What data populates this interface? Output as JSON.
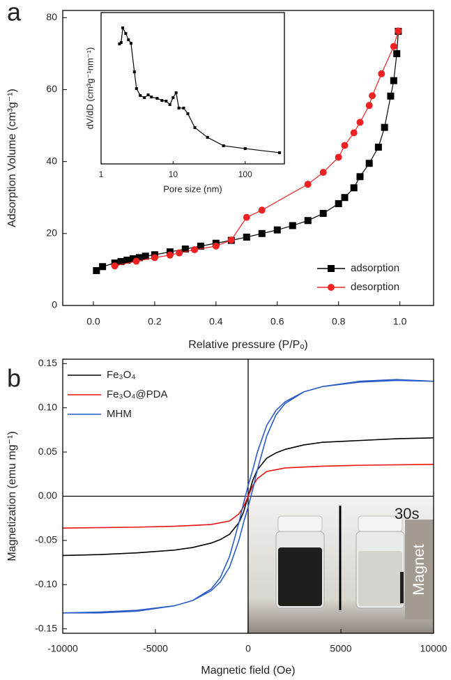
{
  "chart_data": [
    {
      "type": "line",
      "panel_label": "a",
      "xlabel": "Relative pressure (P/Pₒ)",
      "ylabel": "Adsorption Volume (cm³g⁻¹)",
      "xlim": [
        -0.1,
        1.11
      ],
      "ylim": [
        0,
        82
      ],
      "xticks": [
        {
          "value": 0,
          "label": "0.0"
        },
        0.2,
        0.4,
        0.6,
        0.8,
        {
          "value": 1,
          "label": "1.0"
        }
      ],
      "yticks": [
        0,
        20,
        40,
        60,
        80
      ],
      "grid": false,
      "legend": "lower right",
      "series": [
        {
          "name": "adsorption",
          "color": "#000000",
          "marker": "square",
          "x": [
            0.01,
            0.03,
            0.07,
            0.09,
            0.11,
            0.13,
            0.15,
            0.17,
            0.2,
            0.25,
            0.3,
            0.35,
            0.4,
            0.45,
            0.5,
            0.55,
            0.6,
            0.65,
            0.7,
            0.75,
            0.8,
            0.82,
            0.85,
            0.87,
            0.9,
            0.93,
            0.95,
            0.97,
            0.98,
            0.99,
            0.995
          ],
          "values": [
            9.7,
            10.8,
            11.8,
            12.2,
            12.6,
            13.0,
            13.3,
            13.7,
            14.1,
            14.9,
            15.7,
            16.5,
            17.3,
            18.1,
            19.0,
            20.0,
            21.0,
            22.2,
            23.6,
            25.6,
            28.3,
            30.0,
            32.7,
            35.8,
            39.5,
            44.0,
            49.5,
            58.2,
            62.5,
            70.0,
            76.2
          ]
        },
        {
          "name": "desorption",
          "color": "#ee2222",
          "marker": "circle",
          "x": [
            0.995,
            0.98,
            0.94,
            0.91,
            0.9,
            0.87,
            0.85,
            0.82,
            0.8,
            0.75,
            0.7,
            0.55,
            0.5,
            0.45,
            0.4,
            0.33,
            0.28,
            0.25,
            0.2,
            0.14,
            0.07
          ],
          "values": [
            76.3,
            72.0,
            64.4,
            58.3,
            55.6,
            50.9,
            48.0,
            44.5,
            41.2,
            37.0,
            33.7,
            26.5,
            24.5,
            18.2,
            16.5,
            15.5,
            14.6,
            14.0,
            13.3,
            12.3,
            11.0
          ]
        }
      ]
    },
    {
      "type": "line",
      "xlabel": "Pore size (nm)",
      "ylabel": "dV/dD (cm³g⁻¹nm⁻¹)",
      "xscale": "log",
      "xlim": [
        1,
        350
      ],
      "ylim": [
        0,
        100
      ],
      "xticks": [
        1,
        10,
        100
      ],
      "grid": false,
      "series": [
        {
          "color": "#000000",
          "marker": "square",
          "x": [
            1.8,
            1.9,
            2.0,
            2.2,
            2.4,
            2.6,
            2.9,
            3.1,
            3.5,
            4.0,
            4.5,
            5,
            6,
            7,
            8,
            9,
            10,
            11,
            12,
            14,
            16,
            20,
            30,
            50,
            100,
            300
          ],
          "values": [
            79.3,
            80.2,
            89.9,
            86.2,
            82.0,
            79.7,
            60.8,
            49.8,
            45.2,
            43.8,
            45.6,
            44.2,
            43.3,
            41.9,
            41.5,
            39.2,
            43.8,
            47.0,
            36.9,
            36.9,
            33.2,
            24.0,
            17.5,
            12.0,
            10.1,
            7.4
          ]
        }
      ]
    },
    {
      "type": "line",
      "panel_label": "b",
      "xlabel": "Magnetic field (Oe)",
      "ylabel": "Magnetization (emu mg⁻¹)",
      "xlim": [
        -10000,
        10000
      ],
      "ylim": [
        -0.155,
        0.155
      ],
      "xticks": [
        -10000,
        -5000,
        0,
        5000,
        10000
      ],
      "yticks": [
        -0.15,
        {
          "value": -0.1,
          "label": "-0.10"
        },
        -0.05,
        {
          "value": 0,
          "label": "0.00"
        },
        0.05,
        {
          "value": 0.1,
          "label": "0.10"
        },
        0.15
      ],
      "grid": false,
      "legend": "upper left",
      "inset_texts": {
        "time": "30s",
        "magnet": "Magnet"
      },
      "series": [
        {
          "name": "Fe₃O₄",
          "color": "#000000",
          "x": [
            -10000,
            -8000,
            -6000,
            -4000,
            -3000,
            -2000,
            -1500,
            -1000,
            -500,
            -250,
            0,
            250,
            500,
            1000,
            1500,
            2000,
            3000,
            4000,
            6000,
            8000,
            10000
          ],
          "values": [
            -0.067,
            -0.066,
            -0.064,
            -0.061,
            -0.058,
            -0.053,
            -0.049,
            -0.043,
            -0.03,
            -0.018,
            0,
            0.018,
            0.03,
            0.043,
            0.049,
            0.053,
            0.058,
            0.061,
            0.063,
            0.065,
            0.066
          ]
        },
        {
          "name": "Fe₃O₄@PDA",
          "color": "#ee1111",
          "x": [
            -10000,
            -6000,
            -4000,
            -2000,
            -1000,
            -500,
            -250,
            0,
            250,
            500,
            1000,
            2000,
            4000,
            6000,
            10000
          ],
          "values": [
            -0.036,
            -0.035,
            -0.034,
            -0.032,
            -0.028,
            -0.02,
            -0.012,
            0,
            0.012,
            0.02,
            0.028,
            0.032,
            0.034,
            0.035,
            0.036
          ]
        },
        {
          "name": "MHM",
          "color": "#2a5cc8",
          "x": [
            10000,
            8000,
            6000,
            4000,
            3000,
            2000,
            1500,
            1000,
            500,
            250,
            0,
            -250,
            -500,
            -1000,
            -1500,
            -2000,
            -3000,
            -4000,
            -6000,
            -8000,
            -10000,
            -8000,
            -6000,
            -4000,
            -3000,
            -2000,
            -1500,
            -1000,
            -500,
            -250,
            0,
            250,
            500,
            1000,
            1500,
            2000,
            3000,
            4000,
            6000,
            8000,
            10000
          ],
          "values": [
            0.13,
            0.131,
            0.129,
            0.124,
            0.118,
            0.107,
            0.097,
            0.08,
            0.05,
            0.03,
            0.012,
            -0.008,
            -0.03,
            -0.068,
            -0.092,
            -0.105,
            -0.118,
            -0.124,
            -0.13,
            -0.132,
            -0.132,
            -0.131,
            -0.129,
            -0.124,
            -0.118,
            -0.107,
            -0.097,
            -0.08,
            -0.05,
            -0.03,
            -0.012,
            0.008,
            0.03,
            0.068,
            0.092,
            0.105,
            0.118,
            0.124,
            0.13,
            0.132,
            0.13
          ]
        }
      ]
    }
  ]
}
